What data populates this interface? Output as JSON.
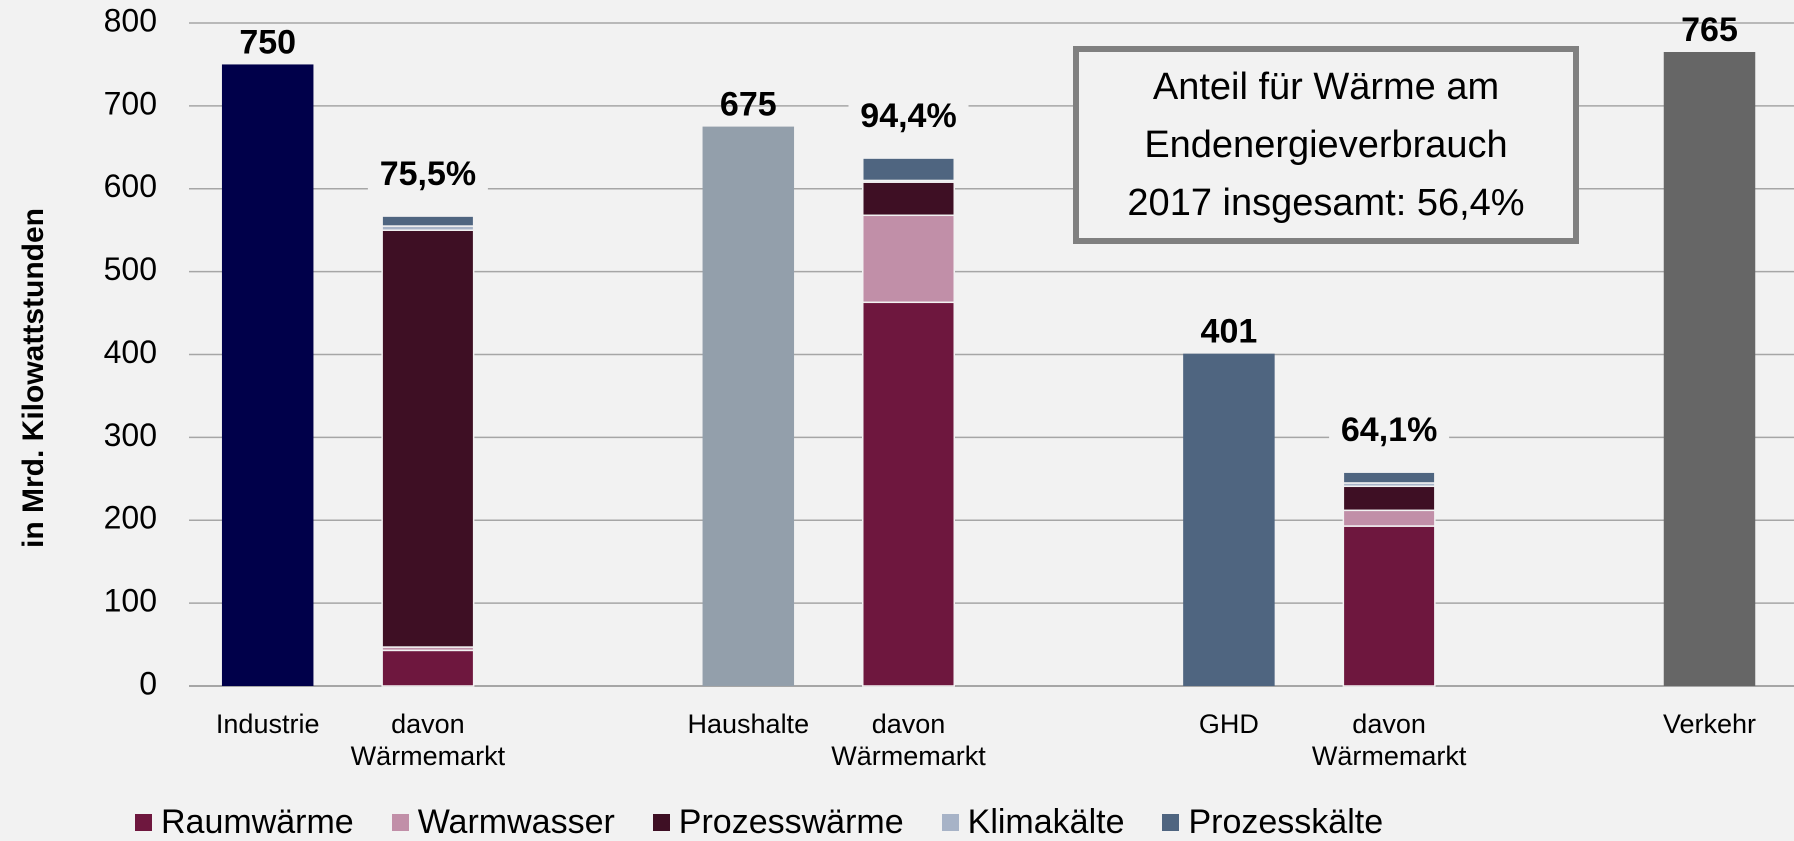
{
  "chart_data": {
    "type": "bar",
    "y_label": "in Mrd. Kilowattstunden",
    "note": "Anteil für Wärme am\nEndenergieverbrauch\n2017 insgesamt: 56,4%",
    "categories": [
      "Industrie",
      "davon\nWärmemarkt",
      null,
      "Haushalte",
      "davon\nWärmemarkt",
      null,
      "GHD",
      "davon\nWärmemarkt",
      null,
      "Verkehr"
    ],
    "totals": {
      "values": [
        750,
        null,
        null,
        675,
        null,
        null,
        401,
        null,
        null,
        765
      ],
      "colors": [
        "#00004a",
        null,
        null,
        "#939fab",
        null,
        null,
        "#4f6580",
        null,
        null,
        "#666666"
      ]
    },
    "series": [
      {
        "name": "Raumwärme",
        "color": "#6e173e",
        "values": [
          null,
          43,
          null,
          null,
          463,
          null,
          null,
          193,
          null,
          null
        ]
      },
      {
        "name": "Warmwasser",
        "color": "#c18fa8",
        "values": [
          null,
          4,
          null,
          null,
          105,
          null,
          null,
          19,
          null,
          null
        ]
      },
      {
        "name": "Prozesswärme",
        "color": "#3e0f24",
        "values": [
          null,
          503,
          null,
          null,
          40,
          null,
          null,
          29,
          null,
          null
        ]
      },
      {
        "name": "Klimakälte",
        "color": "#a7b3c7",
        "values": [
          null,
          5,
          null,
          null,
          2,
          null,
          null,
          4,
          null,
          null
        ]
      },
      {
        "name": "Prozesskälte",
        "color": "#4f6580",
        "values": [
          null,
          12,
          null,
          null,
          27,
          null,
          null,
          13,
          null,
          null
        ]
      }
    ],
    "shares": [
      {
        "index": 1,
        "value": 75.5,
        "label": "75,5%"
      },
      {
        "index": 4,
        "value": 94.4,
        "label": "94,4%"
      },
      {
        "index": 7,
        "value": 64.1,
        "label": "64,1%"
      }
    ],
    "ylim": [
      0,
      800
    ],
    "yticks": [
      0,
      100,
      200,
      300,
      400,
      500,
      600,
      700,
      800
    ],
    "grid": true
  }
}
